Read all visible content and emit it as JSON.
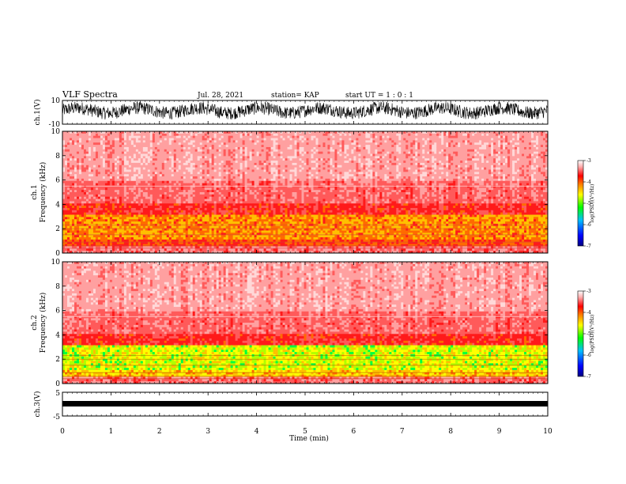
{
  "header": {
    "title": "VLF Spectra",
    "date": "Jul. 28, 2021",
    "station": "station= KAP",
    "start_ut": "start UT =  1 : 0  : 1"
  },
  "colors": {
    "background": "#ffffff",
    "text": "#000000",
    "colormap": [
      "#000080",
      "#0000ff",
      "#00bfff",
      "#00ff00",
      "#ffff00",
      "#ff8000",
      "#ff0000",
      "#ffb0b0",
      "#ffffff"
    ]
  },
  "chart_data": [
    {
      "type": "line",
      "id": "ch1-waveform",
      "ylabel": "ch.1(V)",
      "ylim": [
        -10,
        10
      ],
      "yticks": [
        "10",
        "-10"
      ],
      "xlim": [
        0,
        10
      ],
      "description_series": "dense oscillating voltage trace, roughly between -6 and 9 V"
    },
    {
      "type": "heatmap",
      "id": "ch1-spectrogram",
      "ylabel_top": "ch.1",
      "ylabel": "Frequency (kHz)",
      "ylim": [
        0,
        10
      ],
      "yticks": [
        "0",
        "2",
        "4",
        "6",
        "8",
        "10"
      ],
      "xlim": [
        0,
        10
      ],
      "colorbar": {
        "label": "log(PSD)(V²/Hz)",
        "ticks": [
          "-3",
          "-4",
          "-5",
          "-6",
          "-7"
        ],
        "range": [
          -7,
          -3
        ]
      }
    },
    {
      "type": "heatmap",
      "id": "ch2-spectrogram",
      "ylabel_top": "ch.2",
      "ylabel": "Frequency (kHz)",
      "ylim": [
        0,
        10
      ],
      "yticks": [
        "0",
        "2",
        "4",
        "6",
        "8",
        "10"
      ],
      "xlim": [
        0,
        10
      ],
      "colorbar": {
        "label": "log(PSD)(V²/Hz)",
        "ticks": [
          "-3",
          "-4",
          "-5",
          "-6",
          "-7"
        ],
        "range": [
          -7,
          -3
        ]
      }
    },
    {
      "type": "line",
      "id": "ch3-waveform",
      "ylabel": "ch.3(V)",
      "ylim": [
        -5,
        5
      ],
      "yticks": [
        "5",
        "-5"
      ],
      "xlim": [
        0,
        10
      ],
      "xlabel": "Time (min)",
      "xticks": [
        "0",
        "1",
        "2",
        "3",
        "4",
        "5",
        "6",
        "7",
        "8",
        "9",
        "10"
      ]
    }
  ]
}
